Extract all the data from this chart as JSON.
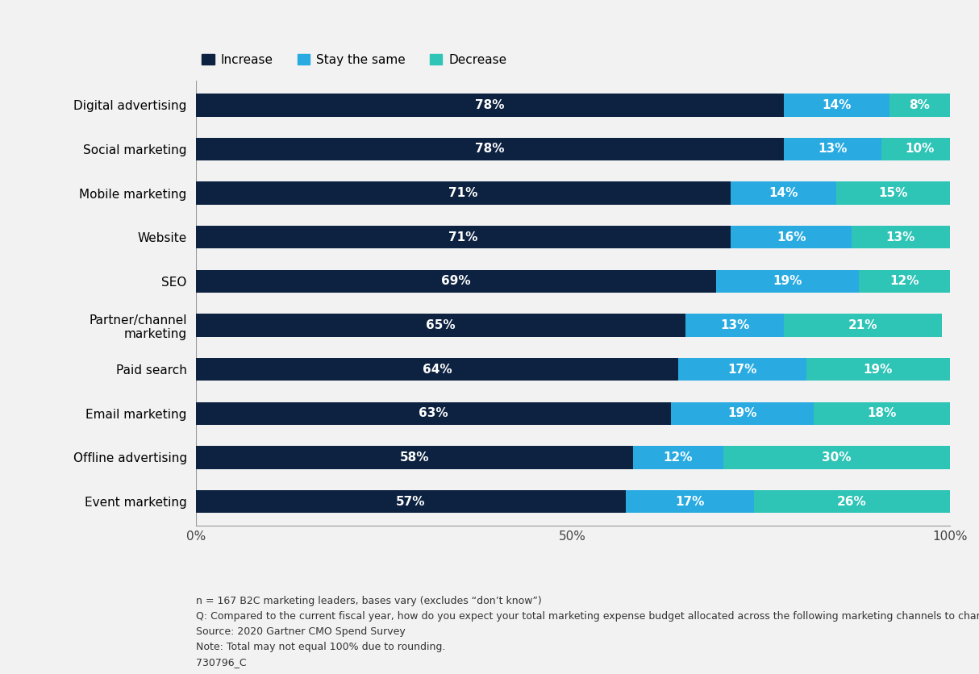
{
  "categories": [
    "Digital advertising",
    "Social marketing",
    "Mobile marketing",
    "Website",
    "SEO",
    "Partner/channel\nmarketing",
    "Paid search",
    "Email marketing",
    "Offline advertising",
    "Event marketing"
  ],
  "increase": [
    78,
    78,
    71,
    71,
    69,
    65,
    64,
    63,
    58,
    57
  ],
  "stay_same": [
    14,
    13,
    14,
    16,
    19,
    13,
    17,
    19,
    12,
    17
  ],
  "decrease": [
    8,
    10,
    15,
    13,
    12,
    21,
    19,
    18,
    30,
    26
  ],
  "color_increase": "#0d2240",
  "color_stay": "#29abe2",
  "color_decrease": "#2ec4b6",
  "bg_color": "#f2f2f2",
  "plot_bg_color": "#f2f2f2",
  "legend_labels": [
    "Increase",
    "Stay the same",
    "Decrease"
  ],
  "xlabel_ticks": [
    "0%",
    "50%",
    "100%"
  ],
  "xlabel_tick_vals": [
    0,
    50,
    100
  ],
  "footnotes": [
    "n = 167 B2C marketing leaders, bases vary (excludes “don’t know”)",
    "Q: Compared to the current fiscal year, how do you expect your total marketing expense budget allocated across the following marketing channels to change in the next fiscal year?",
    "Source: 2020 Gartner CMO Spend Survey",
    "Note: Total may not equal 100% due to rounding.",
    "730796_C"
  ],
  "bar_height": 0.52,
  "figsize": [
    12.14,
    8.36
  ],
  "dpi": 100,
  "label_fontsize": 11,
  "tick_fontsize": 11,
  "footnote_fontsize": 9
}
